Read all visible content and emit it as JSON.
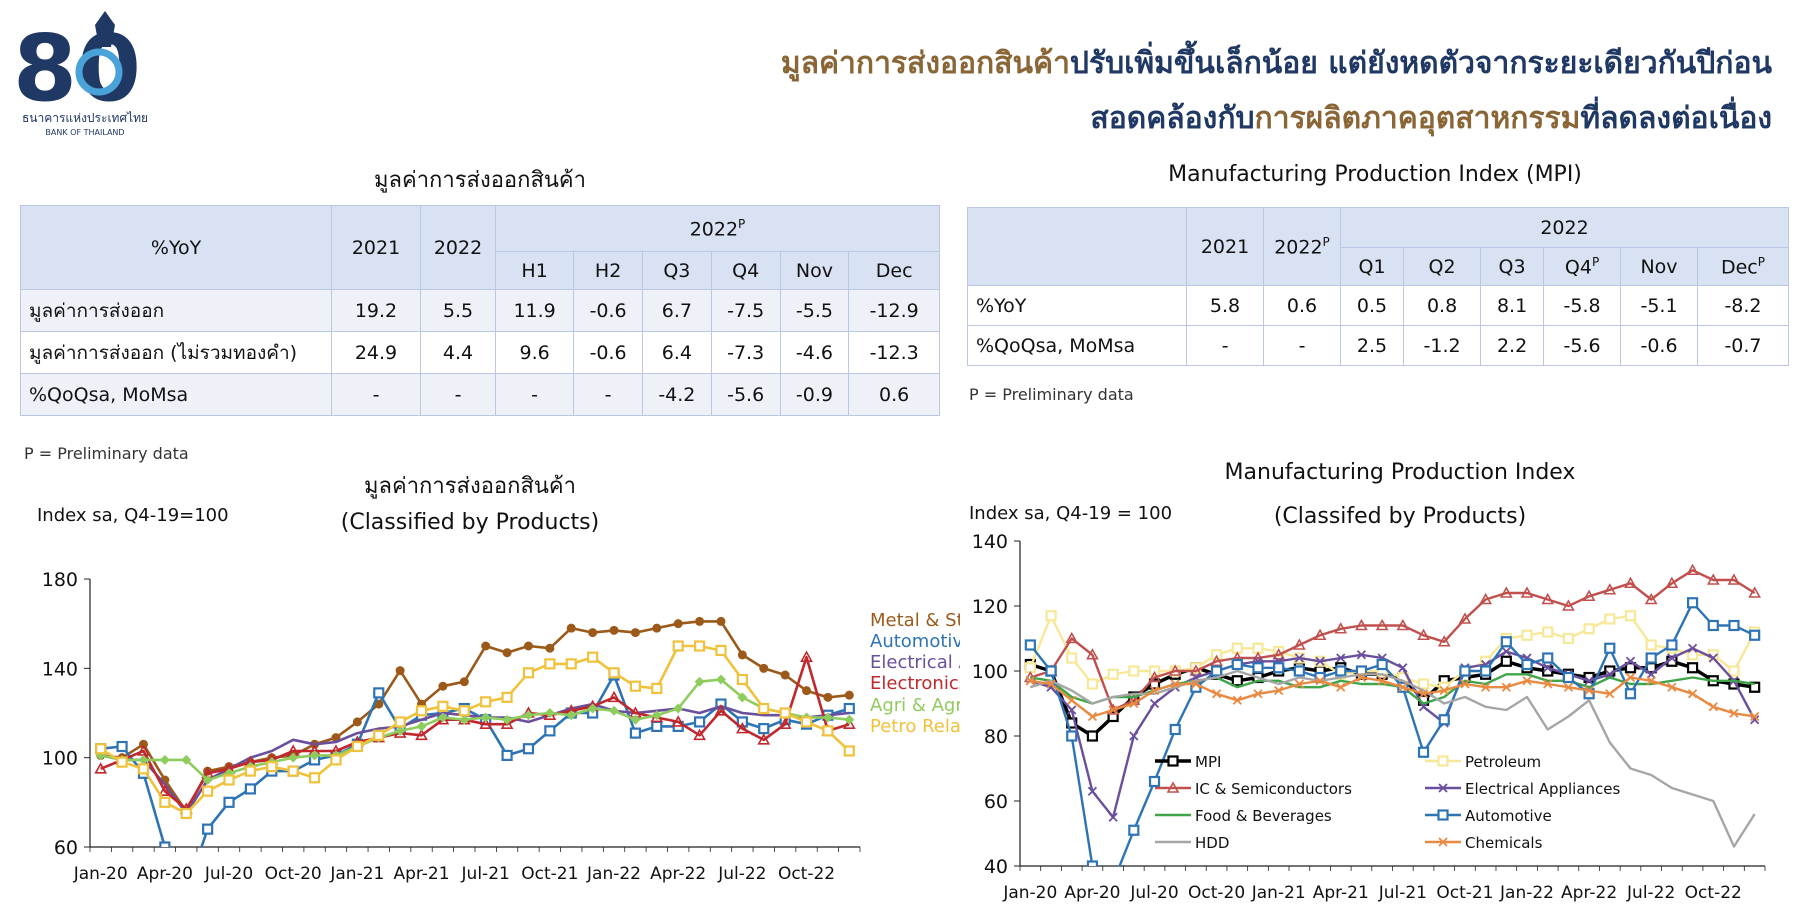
{
  "header": {
    "logo_number": "80",
    "logo_text_th": "ธนาคารแห่งประเทศไทย",
    "logo_text_en": "BANK OF THAILAND",
    "headline_line1_part1": "มูลค่าการส่งออกสินค้า",
    "headline_line1_part2": "ปรับเพิ่มขึ้นเล็กน้อย แต่ยังหดตัวจากระยะเดียวกันปีก่อน",
    "headline_line2_part1": "สอดคล้องกับ",
    "headline_line2_part2": "การผลิตภาคอุตสาหกรรม",
    "headline_line2_part3": "ที่ลดลงต่อเนื่อง",
    "colors": {
      "brown": "#8a6536",
      "navy": "#1f3864"
    }
  },
  "export_table": {
    "title": "มูลค่าการส่งออกสินค้า",
    "corner_label": "%YoY",
    "col_2021": "2021",
    "col_2022": "2022",
    "group_label": "2022",
    "group_sup": "P",
    "sub_headers": [
      "H1",
      "H2",
      "Q3",
      "Q4",
      "Nov",
      "Dec"
    ],
    "rows": [
      {
        "label": "มูลค่าการส่งออก",
        "values": [
          "19.2",
          "5.5",
          "11.9",
          "-0.6",
          "6.7",
          "-7.5",
          "-5.5",
          "-12.9"
        ]
      },
      {
        "label": "มูลค่าการส่งออก (ไม่รวมทองคำ)",
        "values": [
          "24.9",
          "4.4",
          "9.6",
          "-0.6",
          "6.4",
          "-7.3",
          "-4.6",
          "-12.3"
        ]
      },
      {
        "label": "%QoQsa, MoMsa",
        "values": [
          "-",
          "-",
          "-",
          "-",
          "-4.2",
          "-5.6",
          "-0.9",
          "0.6"
        ]
      }
    ],
    "note": "P = Preliminary data"
  },
  "mpi_table": {
    "title": "Manufacturing Production Index (MPI)",
    "col_2021": "2021",
    "col_2022": "2022",
    "col_2022_sup": "P",
    "group_label": "2022",
    "sub_headers": [
      {
        "label": "Q1",
        "sup": ""
      },
      {
        "label": "Q2",
        "sup": ""
      },
      {
        "label": "Q3",
        "sup": ""
      },
      {
        "label": "Q4",
        "sup": "P"
      },
      {
        "label": "Nov",
        "sup": ""
      },
      {
        "label": "Dec",
        "sup": "P"
      }
    ],
    "rows": [
      {
        "label": "%YoY",
        "values": [
          "5.8",
          "0.6",
          "0.5",
          "0.8",
          "8.1",
          "-5.8",
          "-5.1",
          "-8.2"
        ]
      },
      {
        "label": "%QoQsa, MoMsa",
        "values": [
          "-",
          "-",
          "2.5",
          "-1.2",
          "2.2",
          "-5.6",
          "-0.6",
          "-0.7"
        ]
      }
    ],
    "note": "P = Preliminary data"
  },
  "chart_data": [
    {
      "type": "line",
      "title": "มูลค่าการส่งออกสินค้า",
      "subtitle": "(Classified by Products)",
      "ylabel": "Index sa, Q4-19=100",
      "ylim": [
        60,
        180
      ],
      "yticks": [
        60,
        100,
        140,
        180
      ],
      "x": [
        "Jan-20",
        "Feb-20",
        "Mar-20",
        "Apr-20",
        "May-20",
        "Jun-20",
        "Jul-20",
        "Aug-20",
        "Sep-20",
        "Oct-20",
        "Nov-20",
        "Dec-20",
        "Jan-21",
        "Feb-21",
        "Mar-21",
        "Apr-21",
        "May-21",
        "Jun-21",
        "Jul-21",
        "Aug-21",
        "Sep-21",
        "Oct-21",
        "Nov-21",
        "Dec-21",
        "Jan-22",
        "Feb-22",
        "Mar-22",
        "Apr-22",
        "May-22",
        "Jun-22",
        "Jul-22",
        "Aug-22",
        "Sep-22",
        "Oct-22",
        "Nov-22",
        "Dec-22"
      ],
      "xtick_labels": [
        "Jan-20",
        "Apr-20",
        "Jul-20",
        "Oct-20",
        "Jan-21",
        "Apr-21",
        "Jul-21",
        "Oct-21",
        "Jan-22",
        "Apr-22",
        "Jul-22",
        "Oct-22"
      ],
      "legend": "right",
      "series": [
        {
          "name": "Metal & Steel",
          "color": "#9b5a1a",
          "marker": "circle",
          "values": [
            101,
            100,
            106,
            90,
            76,
            94,
            96,
            98,
            100,
            101,
            106,
            109,
            116,
            124,
            139,
            124,
            132,
            134,
            150,
            147,
            150,
            149,
            158,
            156,
            157,
            156,
            158,
            160,
            161,
            161,
            146,
            140,
            137,
            130,
            127,
            128
          ]
        },
        {
          "name": "Automotive",
          "color": "#2e74b5",
          "marker": "square",
          "values": [
            104,
            105,
            93,
            60,
            40,
            68,
            80,
            86,
            94,
            94,
            99,
            101,
            106,
            129,
            113,
            119,
            120,
            122,
            117,
            101,
            104,
            112,
            120,
            120,
            137,
            111,
            114,
            114,
            116,
            124,
            116,
            113,
            117,
            115,
            119,
            122
          ]
        },
        {
          "name": "Electrical Appliances",
          "color": "#6a4f9c",
          "marker": "none",
          "values": [
            101,
            99,
            99,
            88,
            75,
            90,
            95,
            100,
            103,
            108,
            106,
            107,
            111,
            113,
            114,
            117,
            120,
            119,
            118,
            118,
            116,
            119,
            122,
            124,
            121,
            120,
            121,
            122,
            120,
            123,
            120,
            119,
            119,
            118,
            119,
            120
          ]
        },
        {
          "name": "Electronics",
          "color": "#c0282d",
          "marker": "triangle",
          "values": [
            95,
            99,
            103,
            85,
            77,
            93,
            95,
            98,
            99,
            103,
            103,
            103,
            107,
            109,
            111,
            110,
            117,
            117,
            115,
            115,
            120,
            119,
            121,
            123,
            127,
            120,
            118,
            116,
            110,
            121,
            113,
            108,
            115,
            145,
            112,
            115
          ]
        },
        {
          "name": "Agri & Agro",
          "color": "#8fcc5e",
          "marker": "diamond",
          "values": [
            101,
            99,
            99,
            99,
            99,
            90,
            93,
            96,
            98,
            100,
            101,
            101,
            105,
            109,
            112,
            114,
            118,
            117,
            118,
            117,
            119,
            120,
            119,
            122,
            121,
            117,
            119,
            122,
            134,
            135,
            127,
            122,
            120,
            118,
            118,
            117
          ]
        },
        {
          "name": "Petro Related",
          "color": "#f0c23b",
          "marker": "square",
          "values": [
            104,
            98,
            95,
            80,
            75,
            85,
            90,
            94,
            96,
            94,
            91,
            99,
            105,
            110,
            116,
            121,
            123,
            121,
            125,
            127,
            138,
            142,
            142,
            145,
            138,
            132,
            131,
            150,
            150,
            148,
            135,
            122,
            120,
            116,
            112,
            103
          ]
        }
      ]
    },
    {
      "type": "line",
      "title": "Manufacturing Production Index",
      "subtitle": "(Classifed by Products)",
      "ylabel": "Index sa, Q4-19 = 100",
      "ylim": [
        40,
        140
      ],
      "yticks": [
        40,
        60,
        80,
        100,
        120,
        140
      ],
      "x": [
        "Jan-20",
        "Feb-20",
        "Mar-20",
        "Apr-20",
        "May-20",
        "Jun-20",
        "Jul-20",
        "Aug-20",
        "Sep-20",
        "Oct-20",
        "Nov-20",
        "Dec-20",
        "Jan-21",
        "Feb-21",
        "Mar-21",
        "Apr-21",
        "May-21",
        "Jun-21",
        "Jul-21",
        "Aug-21",
        "Sep-21",
        "Oct-21",
        "Nov-21",
        "Dec-21",
        "Jan-22",
        "Feb-22",
        "Mar-22",
        "Apr-22",
        "May-22",
        "Jun-22",
        "Jul-22",
        "Aug-22",
        "Sep-22",
        "Oct-22",
        "Nov-22",
        "Dec-22"
      ],
      "xtick_labels": [
        "Jan-20",
        "Apr-20",
        "Jul-20",
        "Oct-20",
        "Jan-21",
        "Apr-21",
        "Jul-21",
        "Oct-21",
        "Jan-22",
        "Apr-22",
        "Jul-22",
        "Oct-22"
      ],
      "legend": "inside, two columns",
      "series": [
        {
          "name": "MPI",
          "color": "#000000",
          "marker": "square",
          "values": [
            102,
            100,
            84,
            80,
            86,
            92,
            96,
            99,
            101,
            99,
            97,
            98,
            100,
            101,
            100,
            101,
            99,
            99,
            98,
            91,
            97,
            98,
            99,
            103,
            101,
            100,
            99,
            98,
            100,
            101,
            101,
            103,
            101,
            97,
            96,
            95
          ]
        },
        {
          "name": "Petroleum",
          "color": "#f7e898",
          "marker": "square",
          "values": [
            101,
            117,
            104,
            96,
            99,
            100,
            100,
            100,
            101,
            105,
            107,
            107,
            106,
            104,
            103,
            99,
            100,
            100,
            98,
            96,
            95,
            100,
            103,
            110,
            111,
            112,
            110,
            113,
            116,
            117,
            108,
            107,
            105,
            105,
            100,
            112
          ]
        },
        {
          "name": "IC & Semiconductors",
          "color": "#c0504d",
          "marker": "triangle",
          "values": [
            98,
            100,
            110,
            105,
            88,
            91,
            98,
            100,
            100,
            103,
            104,
            104,
            105,
            108,
            111,
            113,
            114,
            114,
            114,
            111,
            109,
            116,
            122,
            124,
            124,
            122,
            120,
            123,
            125,
            127,
            122,
            127,
            131,
            128,
            128,
            124
          ]
        },
        {
          "name": "Electrical Appliances",
          "color": "#6a4f9c",
          "marker": "x",
          "values": [
            97,
            95,
            88,
            63,
            55,
            80,
            90,
            95,
            98,
            100,
            102,
            103,
            103,
            104,
            103,
            104,
            105,
            104,
            101,
            89,
            84,
            101,
            102,
            106,
            104,
            101,
            99,
            97,
            99,
            103,
            99,
            104,
            107,
            104,
            97,
            85
          ]
        },
        {
          "name": "Food & Beverages",
          "color": "#3fa54a",
          "marker": "none",
          "values": [
            98,
            97,
            92,
            90,
            92,
            92,
            94,
            96,
            97,
            98,
            95,
            97,
            97,
            95,
            95,
            97,
            96,
            96,
            95,
            90,
            92,
            97,
            96,
            99,
            99,
            97,
            97,
            95,
            98,
            96,
            96,
            97,
            98,
            97,
            97,
            96
          ]
        },
        {
          "name": "Automotive",
          "color": "#2e74b5",
          "marker": "square",
          "values": [
            108,
            100,
            80,
            40,
            35,
            51,
            66,
            82,
            95,
            100,
            102,
            101,
            101,
            100,
            98,
            100,
            100,
            102,
            95,
            75,
            85,
            100,
            100,
            109,
            102,
            104,
            98,
            93,
            107,
            93,
            104,
            108,
            121,
            114,
            114,
            111
          ]
        },
        {
          "name": "HDD",
          "color": "#a6a6a6",
          "marker": "none",
          "values": [
            95,
            97,
            94,
            90,
            92,
            93,
            93,
            95,
            97,
            98,
            100,
            98,
            96,
            98,
            97,
            98,
            99,
            99,
            97,
            94,
            90,
            92,
            89,
            88,
            92,
            82,
            86,
            91,
            78,
            70,
            68,
            64,
            62,
            60,
            46,
            56
          ]
        },
        {
          "name": "Chemicals",
          "color": "#e88a41",
          "marker": "x",
          "values": [
            97,
            96,
            91,
            86,
            88,
            90,
            94,
            96,
            96,
            93,
            91,
            93,
            94,
            96,
            97,
            95,
            98,
            97,
            95,
            93,
            94,
            96,
            95,
            95,
            97,
            96,
            95,
            94,
            93,
            98,
            97,
            95,
            93,
            89,
            87,
            86
          ]
        }
      ]
    }
  ]
}
